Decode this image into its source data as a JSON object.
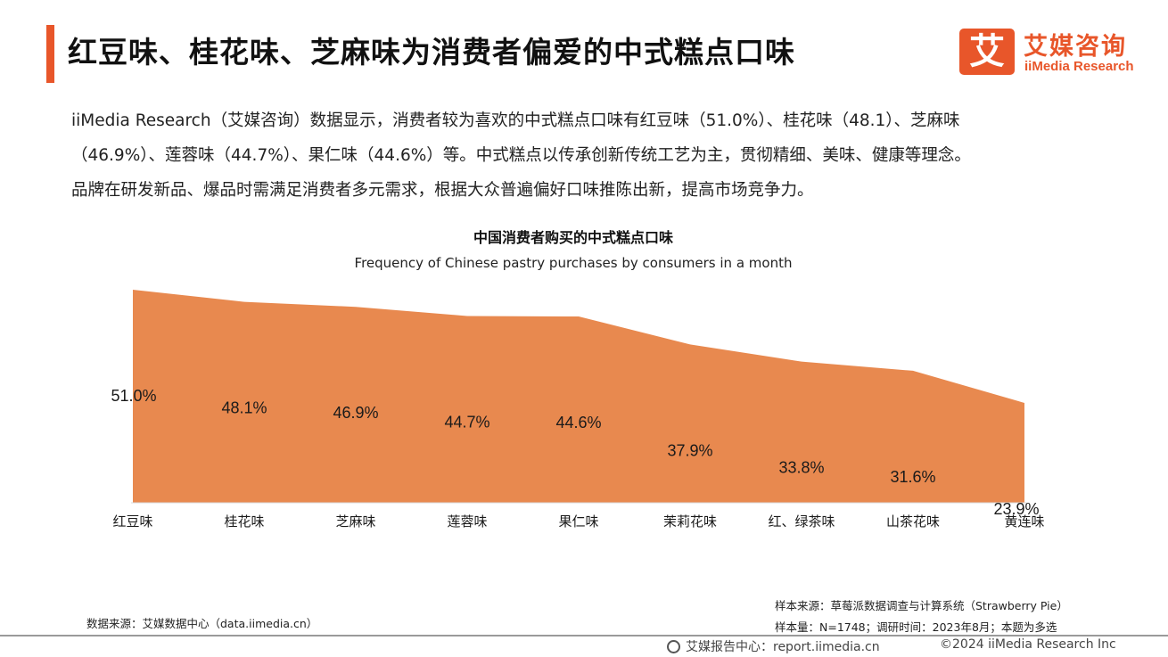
{
  "header": {
    "title": "红豆味、桂花味、芝麻味为消费者偏爱的中式糕点口味",
    "logo_mark": "艾",
    "logo_cn": "艾媒咨询",
    "logo_en": "iiMedia Research"
  },
  "intro": {
    "line1": "iiMedia Research（艾媒咨询）数据显示，消费者较为喜欢的中式糕点口味有红豆味（51.0%）、桂花味（48.1）、芝麻味",
    "line2": "（46.9%）、莲蓉味（44.7%）、果仁味（44.6%）等。中式糕点以传承创新传统工艺为主，贯彻精细、美味、健康等理念。",
    "line3": "品牌在研发新品、爆品时需满足消费者多元需求，根据大众普遍偏好口味推陈出新，提高市场竞争力。"
  },
  "chart_data": {
    "type": "area",
    "title": "中国消费者购买的中式糕点口味",
    "subtitle": "Frequency of Chinese pastry purchases by consumers in a month",
    "categories": [
      "红豆味",
      "桂花味",
      "芝麻味",
      "莲蓉味",
      "果仁味",
      "茉莉花味",
      "红、绿茶味",
      "山茶花味",
      "黄连味"
    ],
    "series": [
      {
        "values": [
          51.0,
          48.1,
          46.9,
          44.7,
          44.6,
          37.9,
          33.8,
          31.6,
          23.9
        ]
      }
    ],
    "data_labels": [
      "51.0%",
      "48.1%",
      "46.9%",
      "44.7%",
      "44.6%",
      "37.9%",
      "33.8%",
      "31.6%",
      "23.9%"
    ],
    "ylim": [
      0,
      51
    ],
    "grid": false,
    "color": "#e8894f"
  },
  "sources": {
    "left": "数据来源：艾媒数据中心（data.iimedia.cn）",
    "right_line1": "样本来源：草莓派数据调查与计算系统（Strawberry Pie）",
    "right_line2": "样本量：N=1748；调研时间：2023年8月；本题为多选"
  },
  "footer": {
    "report": "艾媒报告中心：report.iimedia.cn",
    "copyright": "©2024  iiMedia Research  Inc"
  }
}
